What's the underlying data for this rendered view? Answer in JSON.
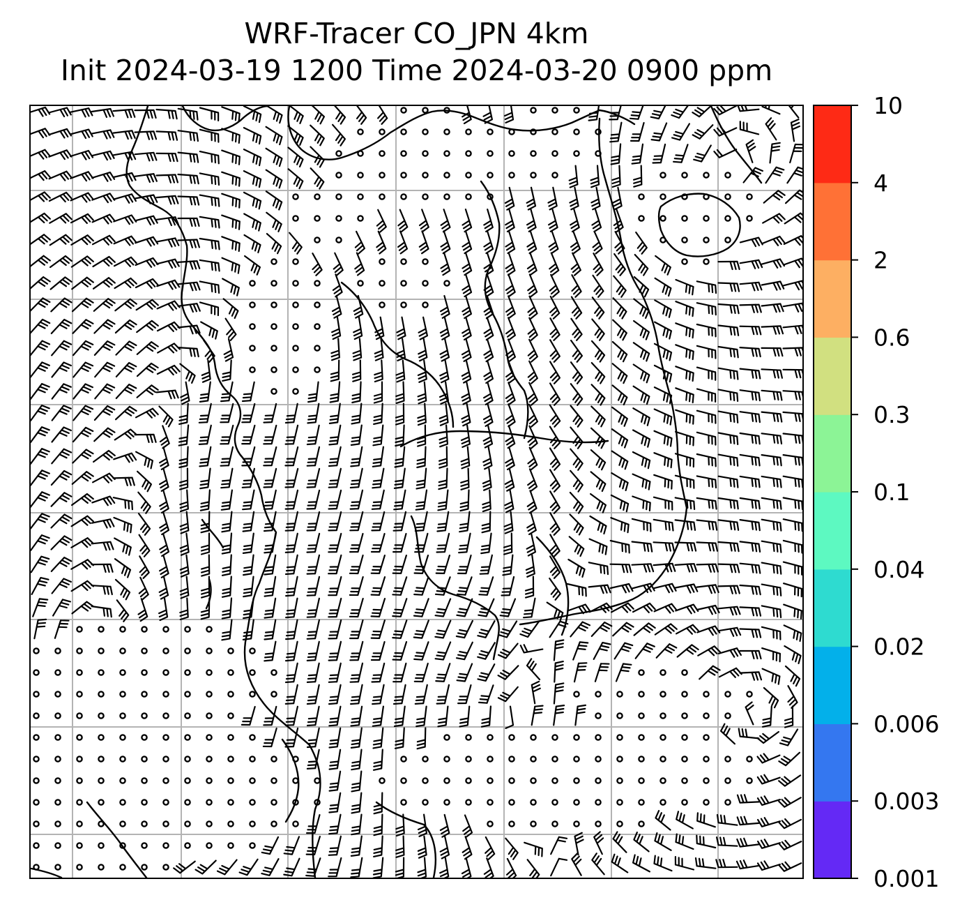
{
  "title": {
    "line1": "WRF-Tracer CO_JPN 4km",
    "line2": "Init 2024-03-19 1200 Time 2024-03-20 0900 ppm"
  },
  "colorbar": {
    "levels": [
      "0.001",
      "0.003",
      "0.006",
      "0.02",
      "0.04",
      "0.1",
      "0.3",
      "0.6",
      "2",
      "4",
      "10"
    ],
    "colors": [
      "#6429f5",
      "#3477f0",
      "#03b0ea",
      "#2edbd0",
      "#5df9c1",
      "#8cf496",
      "#d1e080",
      "#fdaf62",
      "#ff7136",
      "#fe2a15"
    ]
  },
  "map": {
    "background": "#ffffff",
    "gridline_color": "#b3b3b3",
    "coastline_color": "#000000",
    "wind_symbols": "wind-barbs-and-calm-circles"
  }
}
